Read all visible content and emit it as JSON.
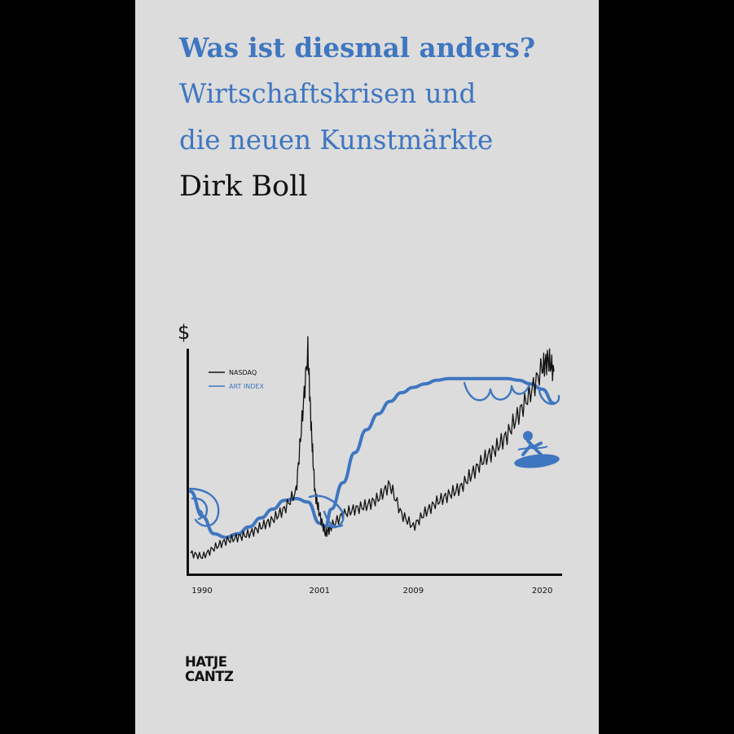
{
  "cover": {
    "title": "Was ist diesmal anders?",
    "subtitle_line1": "Wirtschaftskrisen und",
    "subtitle_line2": "die neuen Kunstmärkte",
    "author": "Dirk Boll",
    "publisher_line1": "HATJE",
    "publisher_line2": "CANTZ",
    "colors": {
      "accent": "#3f76c0",
      "cover": "#dcdcdc",
      "frame": "#000000"
    }
  },
  "chart_data": {
    "type": "line",
    "ylabel": "$",
    "xlabel": "",
    "x_ticks": [
      "1990",
      "2001",
      "2009",
      "2020"
    ],
    "x_range": [
      1990,
      2021
    ],
    "series": [
      {
        "name": "NASDAQ",
        "color": "#111111",
        "x": [
          1990,
          1991,
          1992,
          1993,
          1994,
          1995,
          1996,
          1997,
          1998,
          1999,
          1999.5,
          2000,
          2000.3,
          2000.6,
          2001,
          2001.5,
          2002,
          2003,
          2004,
          2005,
          2006,
          2007,
          2008,
          2009,
          2010,
          2011,
          2012,
          2013,
          2014,
          2015,
          2016,
          2017,
          2018,
          2019,
          2020,
          2020.5,
          2021
        ],
        "y": [
          5,
          3,
          8,
          12,
          14,
          16,
          20,
          24,
          30,
          40,
          80,
          120,
          75,
          40,
          27,
          16,
          20,
          27,
          30,
          32,
          36,
          44,
          27,
          20,
          28,
          34,
          38,
          42,
          50,
          58,
          64,
          72,
          84,
          96,
          110,
          115,
          108
        ]
      },
      {
        "name": "ART INDEX",
        "color": "#3f76c0",
        "x": [
          1990,
          1991,
          1992,
          1993,
          1994,
          1995,
          1996,
          1997,
          1998,
          1999,
          2000,
          2001,
          2001.5,
          2002,
          2003,
          2004,
          2005,
          2006,
          2007,
          2008,
          2009,
          2010,
          2011,
          2012,
          2013,
          2014,
          2015,
          2016,
          2017,
          2018,
          2019,
          2020,
          2021
        ],
        "y": [
          40,
          26,
          16,
          14,
          16,
          20,
          25,
          30,
          35,
          36,
          34,
          22,
          20,
          30,
          45,
          62,
          75,
          84,
          91,
          96,
          99,
          101,
          103,
          104,
          104,
          104,
          104,
          104,
          104,
          103,
          101,
          98,
          90
        ]
      }
    ]
  }
}
